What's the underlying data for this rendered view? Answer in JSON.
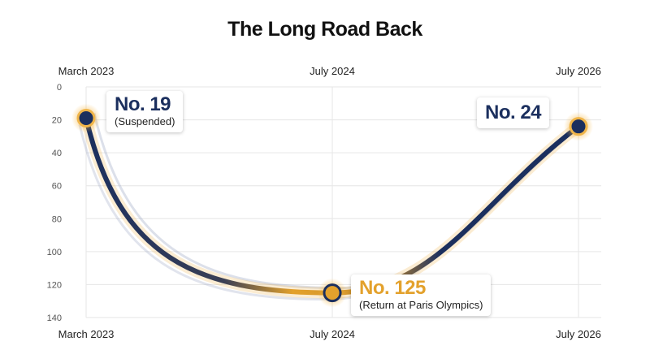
{
  "chart_data": {
    "type": "line",
    "title": "The Long Road Back",
    "xlabel": "",
    "ylabel": "",
    "x_ticks": [
      "March 2023",
      "July 2024",
      "July 2026"
    ],
    "y_ticks": [
      0,
      20,
      40,
      60,
      80,
      100,
      120,
      140
    ],
    "ylim": [
      0,
      140
    ],
    "y_inverted": true,
    "grid": true,
    "series": [
      {
        "points": [
          {
            "x": "March 2023",
            "y": 19
          },
          {
            "x": "July 2024",
            "y": 125
          },
          {
            "x": "July 2026",
            "y": 24
          }
        ]
      }
    ],
    "annotations": [
      {
        "x": "March 2023",
        "label": "No. 19",
        "note": "(Suspended)"
      },
      {
        "x": "July 2024",
        "label": "No. 125",
        "note": "(Return at Paris Olympics)"
      },
      {
        "x": "July 2026",
        "label": "No. 24",
        "note": ""
      }
    ],
    "colors": {
      "line": "#1b2f5e",
      "highlight": "#e3a12c",
      "grid": "#e6e6e6"
    }
  }
}
